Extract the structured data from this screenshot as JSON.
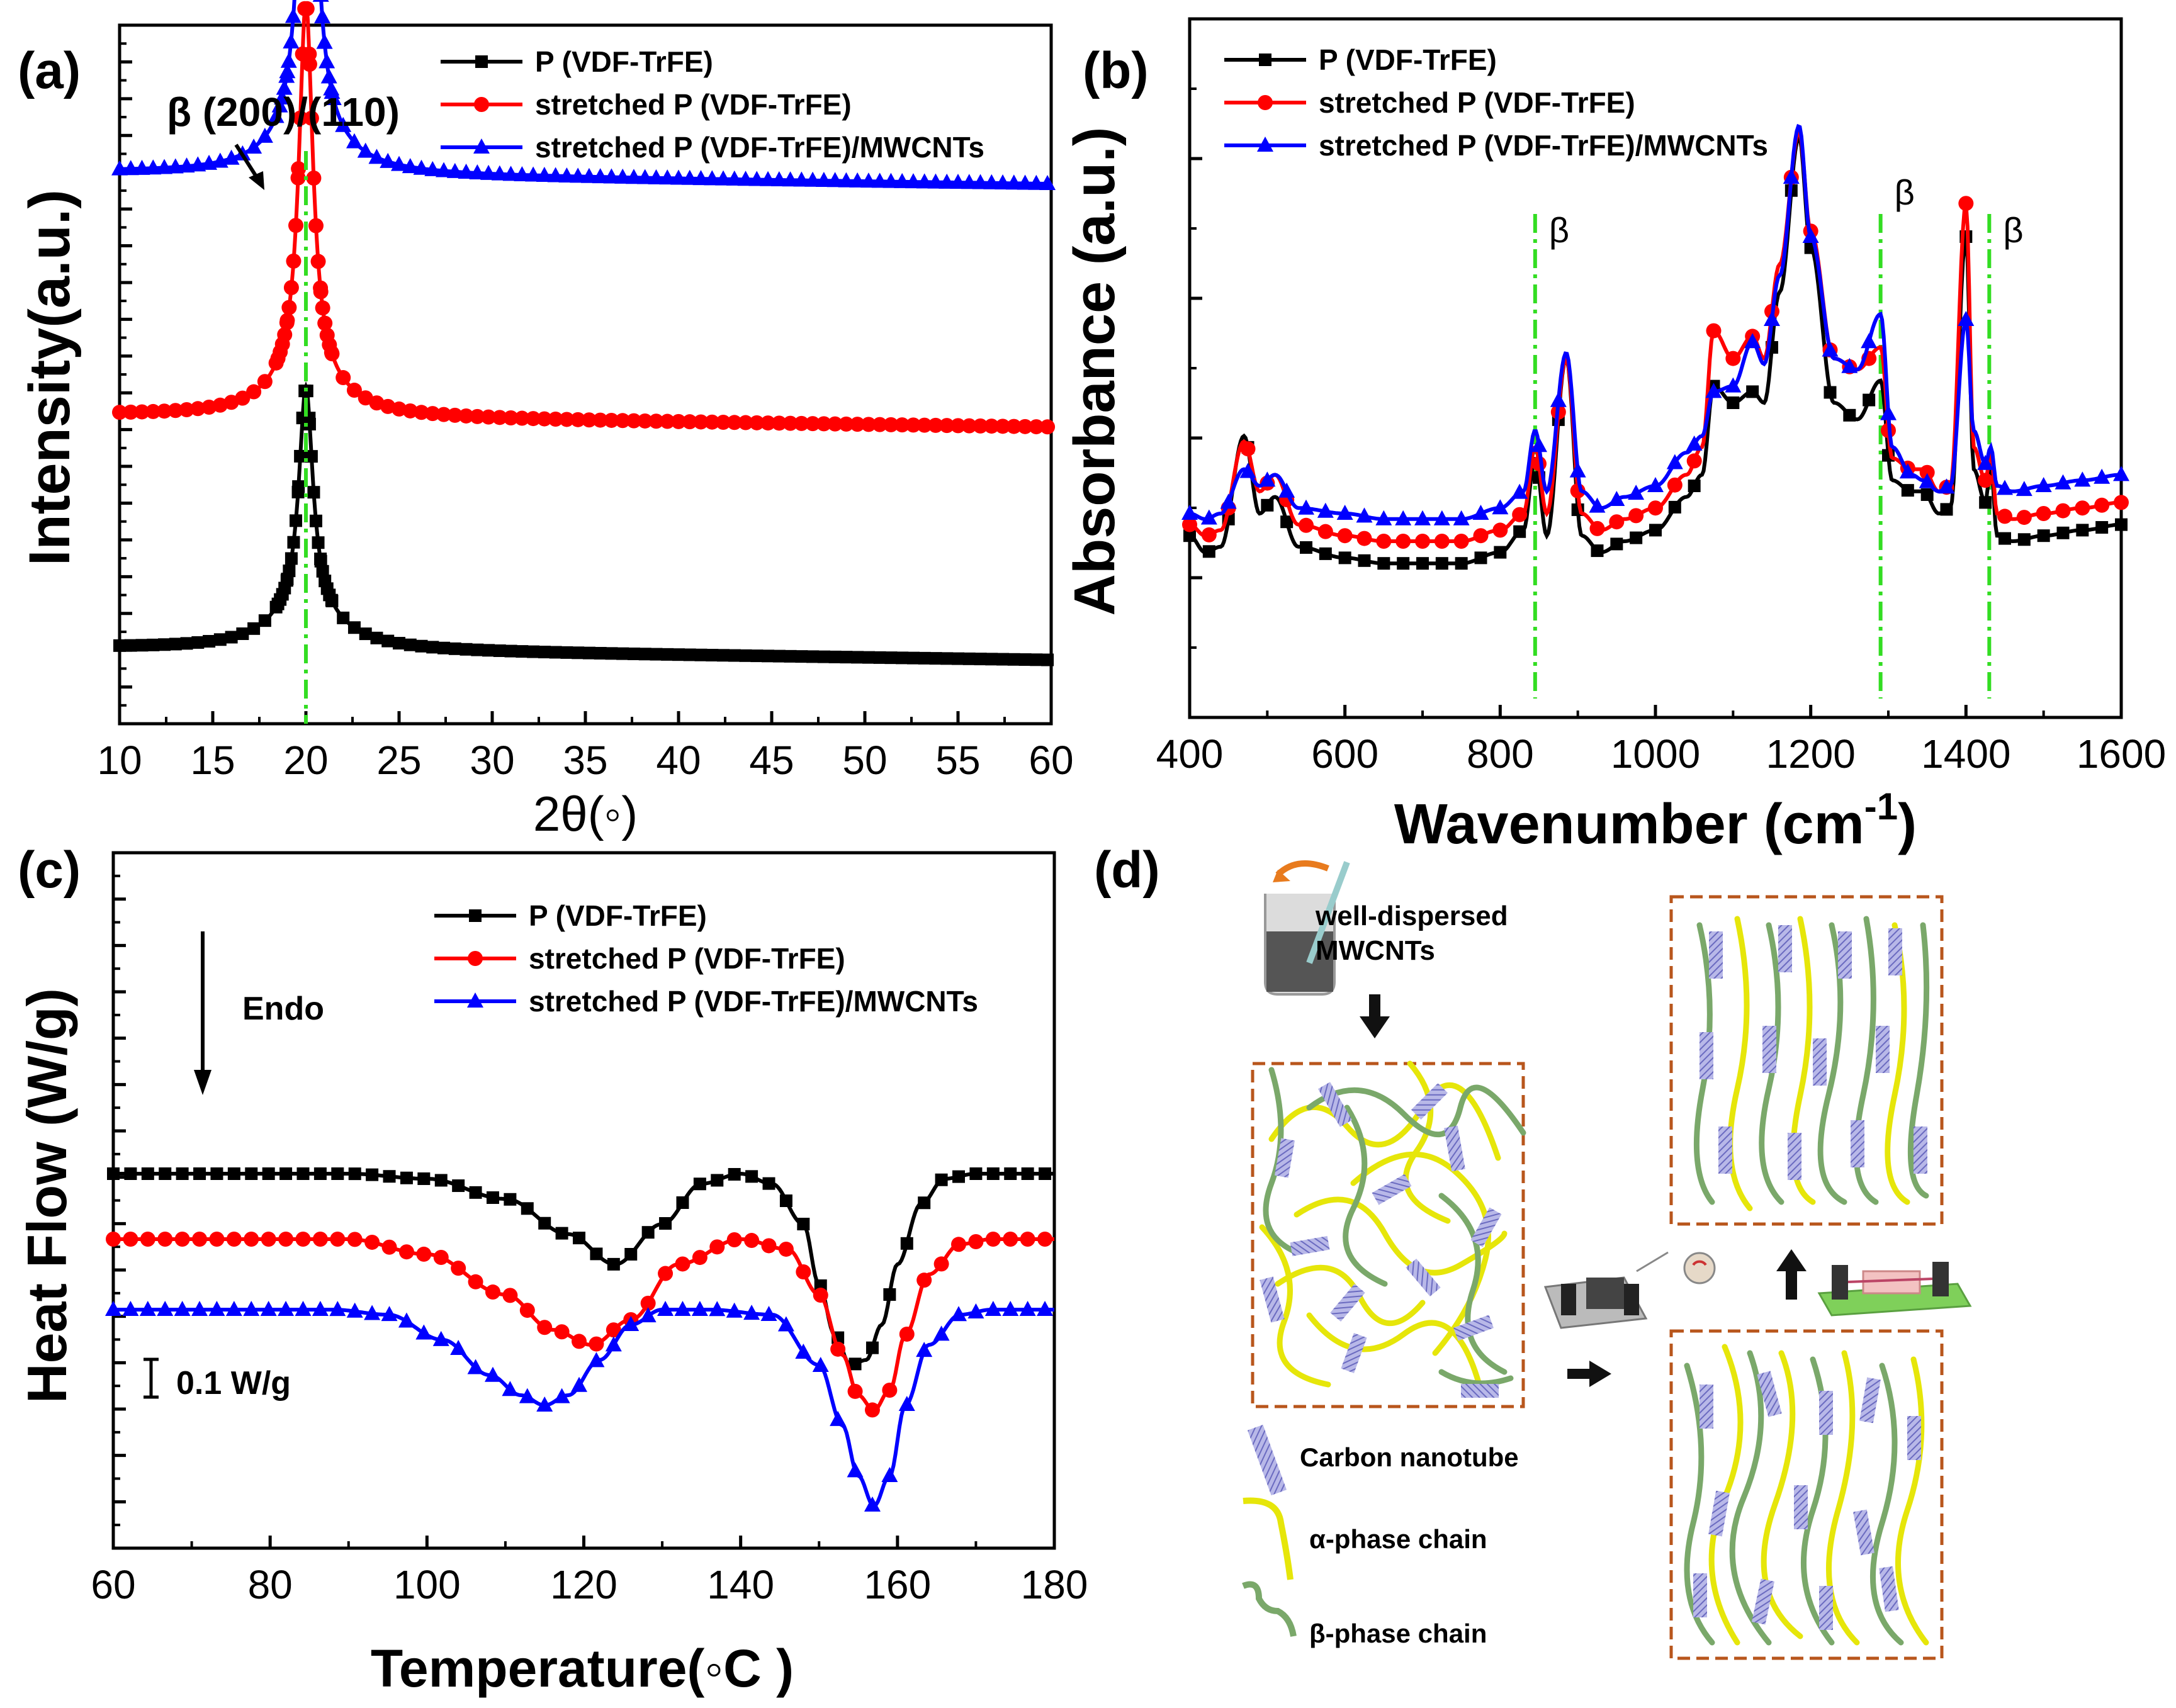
{
  "colors": {
    "black": "#000000",
    "red": "#ff0000",
    "blue": "#0000ff",
    "guide": "#33dd22",
    "box": "#b8561c",
    "cnt": "#8a8ad6",
    "alpha": "#e6e60a",
    "beta": "#7aa86a"
  },
  "chart_data": [
    {
      "panel": "(a)",
      "type": "line",
      "title": "",
      "xlabel": "2θ(◦)",
      "ylabel": "Intensity(a.u.)",
      "xlim": [
        10,
        60
      ],
      "xticks": [
        "10",
        "15",
        "20",
        "25",
        "30",
        "35",
        "40",
        "45",
        "50",
        "55",
        "60"
      ],
      "annotation": "β (200)/(110)",
      "guide_x": 20,
      "legend": [
        {
          "name": "P (VDF-TrFE)",
          "color": "#000000",
          "marker": "square"
        },
        {
          "name": "stretched P (VDF-TrFE)",
          "color": "#ff0000",
          "marker": "circle"
        },
        {
          "name": "stretched P (VDF-TrFE)/MWCNTs",
          "color": "#0000ff",
          "marker": "triangle"
        }
      ],
      "series": [
        {
          "name": "P (VDF-TrFE)",
          "baseline": 0.05,
          "peak_at": 20.0,
          "peak_height": 0.22
        },
        {
          "name": "stretched P (VDF-TrFE)",
          "baseline": 0.28,
          "peak_at": 20.0,
          "peak_height": 0.37
        },
        {
          "name": "stretched P (VDF-TrFE)/MWCNTs",
          "baseline": 0.52,
          "peak_at": 20.1,
          "peak_height": 0.48
        }
      ]
    },
    {
      "panel": "(b)",
      "type": "line",
      "xlabel": "Wavenumber (cm",
      "xlabel_sup": "-1",
      "xlabel_end": ")",
      "ylabel": "Absorbance (a.u.)",
      "xlim": [
        400,
        1600
      ],
      "xticks": [
        "400",
        "600",
        "800",
        "1000",
        "1200",
        "1400",
        "1600"
      ],
      "beta_bands": [
        845,
        1290,
        1430
      ],
      "beta_label": "β",
      "legend": [
        {
          "name": "P (VDF-TrFE)",
          "color": "#000000",
          "marker": "square"
        },
        {
          "name": "stretched P (VDF-TrFE)",
          "color": "#ff0000",
          "marker": "circle"
        },
        {
          "name": "stretched P (VDF-TrFE)/MWCNTs",
          "color": "#0000ff",
          "marker": "triangle"
        }
      ],
      "series": [
        {
          "name": "P (VDF-TrFE)",
          "x": [
            400,
            420,
            440,
            470,
            490,
            510,
            540,
            600,
            650,
            700,
            750,
            800,
            830,
            845,
            860,
            885,
            905,
            930,
            960,
            1000,
            1040,
            1060,
            1075,
            1100,
            1125,
            1140,
            1160,
            1185,
            1200,
            1230,
            1260,
            1290,
            1305,
            1330,
            1345,
            1365,
            1380,
            1400,
            1410,
            1425,
            1432,
            1440,
            1460,
            1500,
            1550,
            1600
          ],
          "y": [
            0.26,
            0.23,
            0.24,
            0.44,
            0.3,
            0.33,
            0.24,
            0.22,
            0.21,
            0.21,
            0.21,
            0.23,
            0.27,
            0.4,
            0.26,
            0.58,
            0.26,
            0.23,
            0.25,
            0.27,
            0.33,
            0.37,
            0.53,
            0.5,
            0.52,
            0.5,
            0.7,
            0.98,
            0.78,
            0.5,
            0.47,
            0.54,
            0.36,
            0.34,
            0.34,
            0.3,
            0.31,
            0.8,
            0.38,
            0.32,
            0.39,
            0.26,
            0.25,
            0.26,
            0.27,
            0.28
          ]
        },
        {
          "name": "stretched P (VDF-TrFE)",
          "x": [
            400,
            420,
            440,
            470,
            490,
            510,
            540,
            600,
            650,
            700,
            750,
            800,
            830,
            845,
            860,
            885,
            905,
            930,
            960,
            1000,
            1040,
            1060,
            1075,
            1100,
            1125,
            1140,
            1160,
            1185,
            1200,
            1230,
            1260,
            1290,
            1305,
            1330,
            1345,
            1365,
            1380,
            1400,
            1410,
            1425,
            1432,
            1440,
            1460,
            1500,
            1550,
            1600
          ],
          "y": [
            0.28,
            0.26,
            0.27,
            0.43,
            0.34,
            0.37,
            0.28,
            0.26,
            0.25,
            0.25,
            0.25,
            0.27,
            0.3,
            0.42,
            0.3,
            0.58,
            0.3,
            0.27,
            0.29,
            0.31,
            0.37,
            0.42,
            0.63,
            0.58,
            0.62,
            0.58,
            0.75,
            0.99,
            0.81,
            0.58,
            0.56,
            0.6,
            0.4,
            0.38,
            0.38,
            0.34,
            0.35,
            0.86,
            0.42,
            0.36,
            0.41,
            0.3,
            0.29,
            0.3,
            0.31,
            0.32
          ]
        },
        {
          "name": "stretched P (VDF-TrFE)/MWCNTs",
          "x": [
            400,
            420,
            440,
            470,
            490,
            510,
            540,
            600,
            650,
            700,
            750,
            800,
            830,
            845,
            860,
            885,
            905,
            930,
            960,
            1000,
            1040,
            1060,
            1075,
            1100,
            1125,
            1140,
            1160,
            1185,
            1200,
            1230,
            1260,
            1290,
            1305,
            1330,
            1345,
            1365,
            1380,
            1400,
            1410,
            1425,
            1432,
            1440,
            1460,
            1500,
            1550,
            1600
          ],
          "y": [
            0.3,
            0.29,
            0.3,
            0.38,
            0.35,
            0.37,
            0.31,
            0.3,
            0.29,
            0.29,
            0.29,
            0.31,
            0.34,
            0.45,
            0.34,
            0.59,
            0.34,
            0.31,
            0.33,
            0.35,
            0.41,
            0.44,
            0.52,
            0.53,
            0.61,
            0.57,
            0.73,
            1.0,
            0.8,
            0.58,
            0.56,
            0.66,
            0.42,
            0.37,
            0.36,
            0.34,
            0.35,
            0.65,
            0.45,
            0.39,
            0.42,
            0.35,
            0.34,
            0.35,
            0.36,
            0.37
          ]
        }
      ]
    },
    {
      "panel": "(c)",
      "type": "line",
      "xlabel": "Temperature(◦C )",
      "ylabel": "Heat Flow (W/g)",
      "xlim": [
        60,
        180
      ],
      "xticks": [
        "60",
        "80",
        "100",
        "120",
        "140",
        "160",
        "180"
      ],
      "endo_label": "Endo",
      "scale_label": "0.1 W/g",
      "legend": [
        {
          "name": "P (VDF-TrFE)",
          "color": "#000000",
          "marker": "square"
        },
        {
          "name": "stretched P (VDF-TrFE)",
          "color": "#ff0000",
          "marker": "circle"
        },
        {
          "name": "stretched P (VDF-TrFE)/MWCNTs",
          "color": "#0000ff",
          "marker": "triangle"
        }
      ],
      "series": [
        {
          "name": "P (VDF-TrFE)",
          "x": [
            60,
            80,
            90,
            100,
            110,
            118,
            124,
            130,
            135,
            140,
            144,
            148,
            150,
            152,
            154,
            156,
            158,
            160,
            163,
            166,
            170,
            180
          ],
          "y": [
            0.0,
            0.0,
            0.0,
            -0.01,
            -0.05,
            -0.12,
            -0.18,
            -0.1,
            -0.02,
            0.0,
            -0.02,
            -0.1,
            -0.22,
            -0.32,
            -0.38,
            -0.37,
            -0.3,
            -0.18,
            -0.06,
            -0.01,
            0.0,
            0.0
          ]
        },
        {
          "name": "stretched P (VDF-TrFE)",
          "x": [
            60,
            80,
            90,
            100,
            110,
            116,
            121,
            126,
            132,
            140,
            146,
            150,
            153,
            155,
            157,
            159,
            161,
            164,
            168,
            172,
            180
          ],
          "y": [
            -0.13,
            -0.13,
            -0.13,
            -0.16,
            -0.24,
            -0.31,
            -0.34,
            -0.29,
            -0.18,
            -0.13,
            -0.15,
            -0.24,
            -0.36,
            -0.44,
            -0.47,
            -0.43,
            -0.32,
            -0.2,
            -0.14,
            -0.13,
            -0.13
          ]
        },
        {
          "name": "stretched P (VDF-TrFE)/MWCNTs",
          "x": [
            60,
            70,
            80,
            88,
            95,
            102,
            108,
            112,
            115,
            118,
            122,
            126,
            130,
            136,
            144,
            150,
            153,
            155,
            157,
            159,
            161,
            164,
            168,
            172,
            180
          ],
          "y": [
            -0.27,
            -0.27,
            -0.27,
            -0.27,
            -0.28,
            -0.33,
            -0.4,
            -0.44,
            -0.46,
            -0.44,
            -0.37,
            -0.3,
            -0.27,
            -0.27,
            -0.28,
            -0.38,
            -0.5,
            -0.6,
            -0.66,
            -0.6,
            -0.46,
            -0.34,
            -0.28,
            -0.27,
            -0.27
          ]
        }
      ]
    }
  ],
  "panel_d": {
    "label": "(d)",
    "dispersion_label_1": "well-dispersed",
    "dispersion_label_2": "MWCNTs",
    "legend_cnt": "Carbon nanotube",
    "legend_alpha": "α-phase chain",
    "legend_beta": "β-phase chain"
  }
}
